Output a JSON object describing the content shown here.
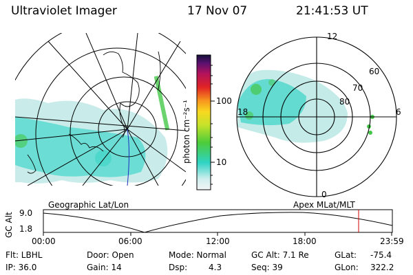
{
  "header": {
    "instrument": "Ultraviolet Imager",
    "date": "17 Nov 07",
    "time": "21:41:53 UT"
  },
  "colorbar": {
    "unit_label": "photon cm⁻²s⁻¹",
    "ticks": [
      "100",
      "10"
    ]
  },
  "polar_plot": {
    "mlt_labels": [
      "12",
      "18",
      "6",
      "0"
    ],
    "lat_labels": [
      "60",
      "70",
      "80"
    ]
  },
  "timeline": {
    "left_label": "Geographic Lat/Lon",
    "right_label": "Apex MLat/MLT",
    "y_axis_label": "GC Alt",
    "y_ticks": [
      "9.0",
      "1.8"
    ],
    "x_ticks": [
      "00:00",
      "06:00",
      "12:00",
      "18:00",
      "23:59"
    ]
  },
  "status": {
    "flt": "Flt: LBHL",
    "ip": "IP: 36.0",
    "door": "Door: Open",
    "gain": "Gain: 14",
    "mode": "Mode: Normal",
    "dsp_label": "Dsp:",
    "dsp_value": "4.3",
    "gcalt": "GC Alt: 7.1 Re",
    "seq": "Seq: 39",
    "glat_label": "GLat:",
    "glat_value": "-75.4",
    "glon_label": "GLon:",
    "glon_value": "322.2"
  },
  "colors": {
    "aurora_dim": "#bfe9e6",
    "aurora_mid": "#2fd3c4",
    "aurora_bright": "#45c84a",
    "position_marker": "#d00000",
    "track": "#1a2dbd"
  }
}
